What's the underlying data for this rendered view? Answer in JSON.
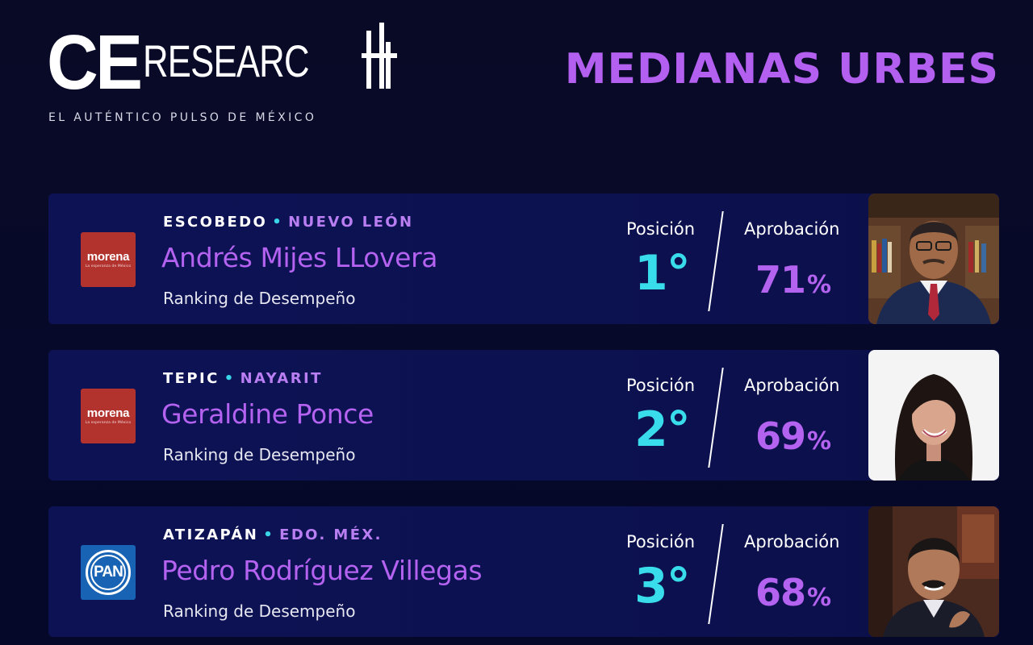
{
  "brand": {
    "logo_ce": "CE",
    "logo_research": "RESEARC",
    "tagline": "EL AUTÉNTICO PULSO DE MÉXICO"
  },
  "headline": "MEDIANAS URBES",
  "labels": {
    "position": "Posición",
    "approval": "Aprobación",
    "ranking": "Ranking de Desempeño",
    "percent": "%"
  },
  "entries": [
    {
      "city": "ESCOBEDO",
      "state": "NUEVO LEÓN",
      "candidate": "Andrés Mijes LLovera",
      "party": "morena",
      "party_sub": "La esperanza de México",
      "position": "1°",
      "approval": "71",
      "photo_icon": "man-portrait-bookshelf"
    },
    {
      "city": "TEPIC",
      "state": "NAYARIT",
      "candidate": "Geraldine Ponce",
      "party": "morena",
      "party_sub": "La esperanza de México",
      "position": "2°",
      "approval": "69",
      "photo_icon": "woman-portrait-white"
    },
    {
      "city": "ATIZAPÁN",
      "state": "EDO. MÉX.",
      "candidate": "Pedro Rodríguez Villegas",
      "party": "PAN",
      "party_sub": "",
      "position": "3°",
      "approval": "68",
      "photo_icon": "man-portrait-office"
    }
  ],
  "colors": {
    "background": "#080a24",
    "card": "#0d1255",
    "accent_purple": "#b462f0",
    "accent_cyan": "#38dcea",
    "morena_red": "#b2322e",
    "pan_blue": "#1863b4"
  }
}
